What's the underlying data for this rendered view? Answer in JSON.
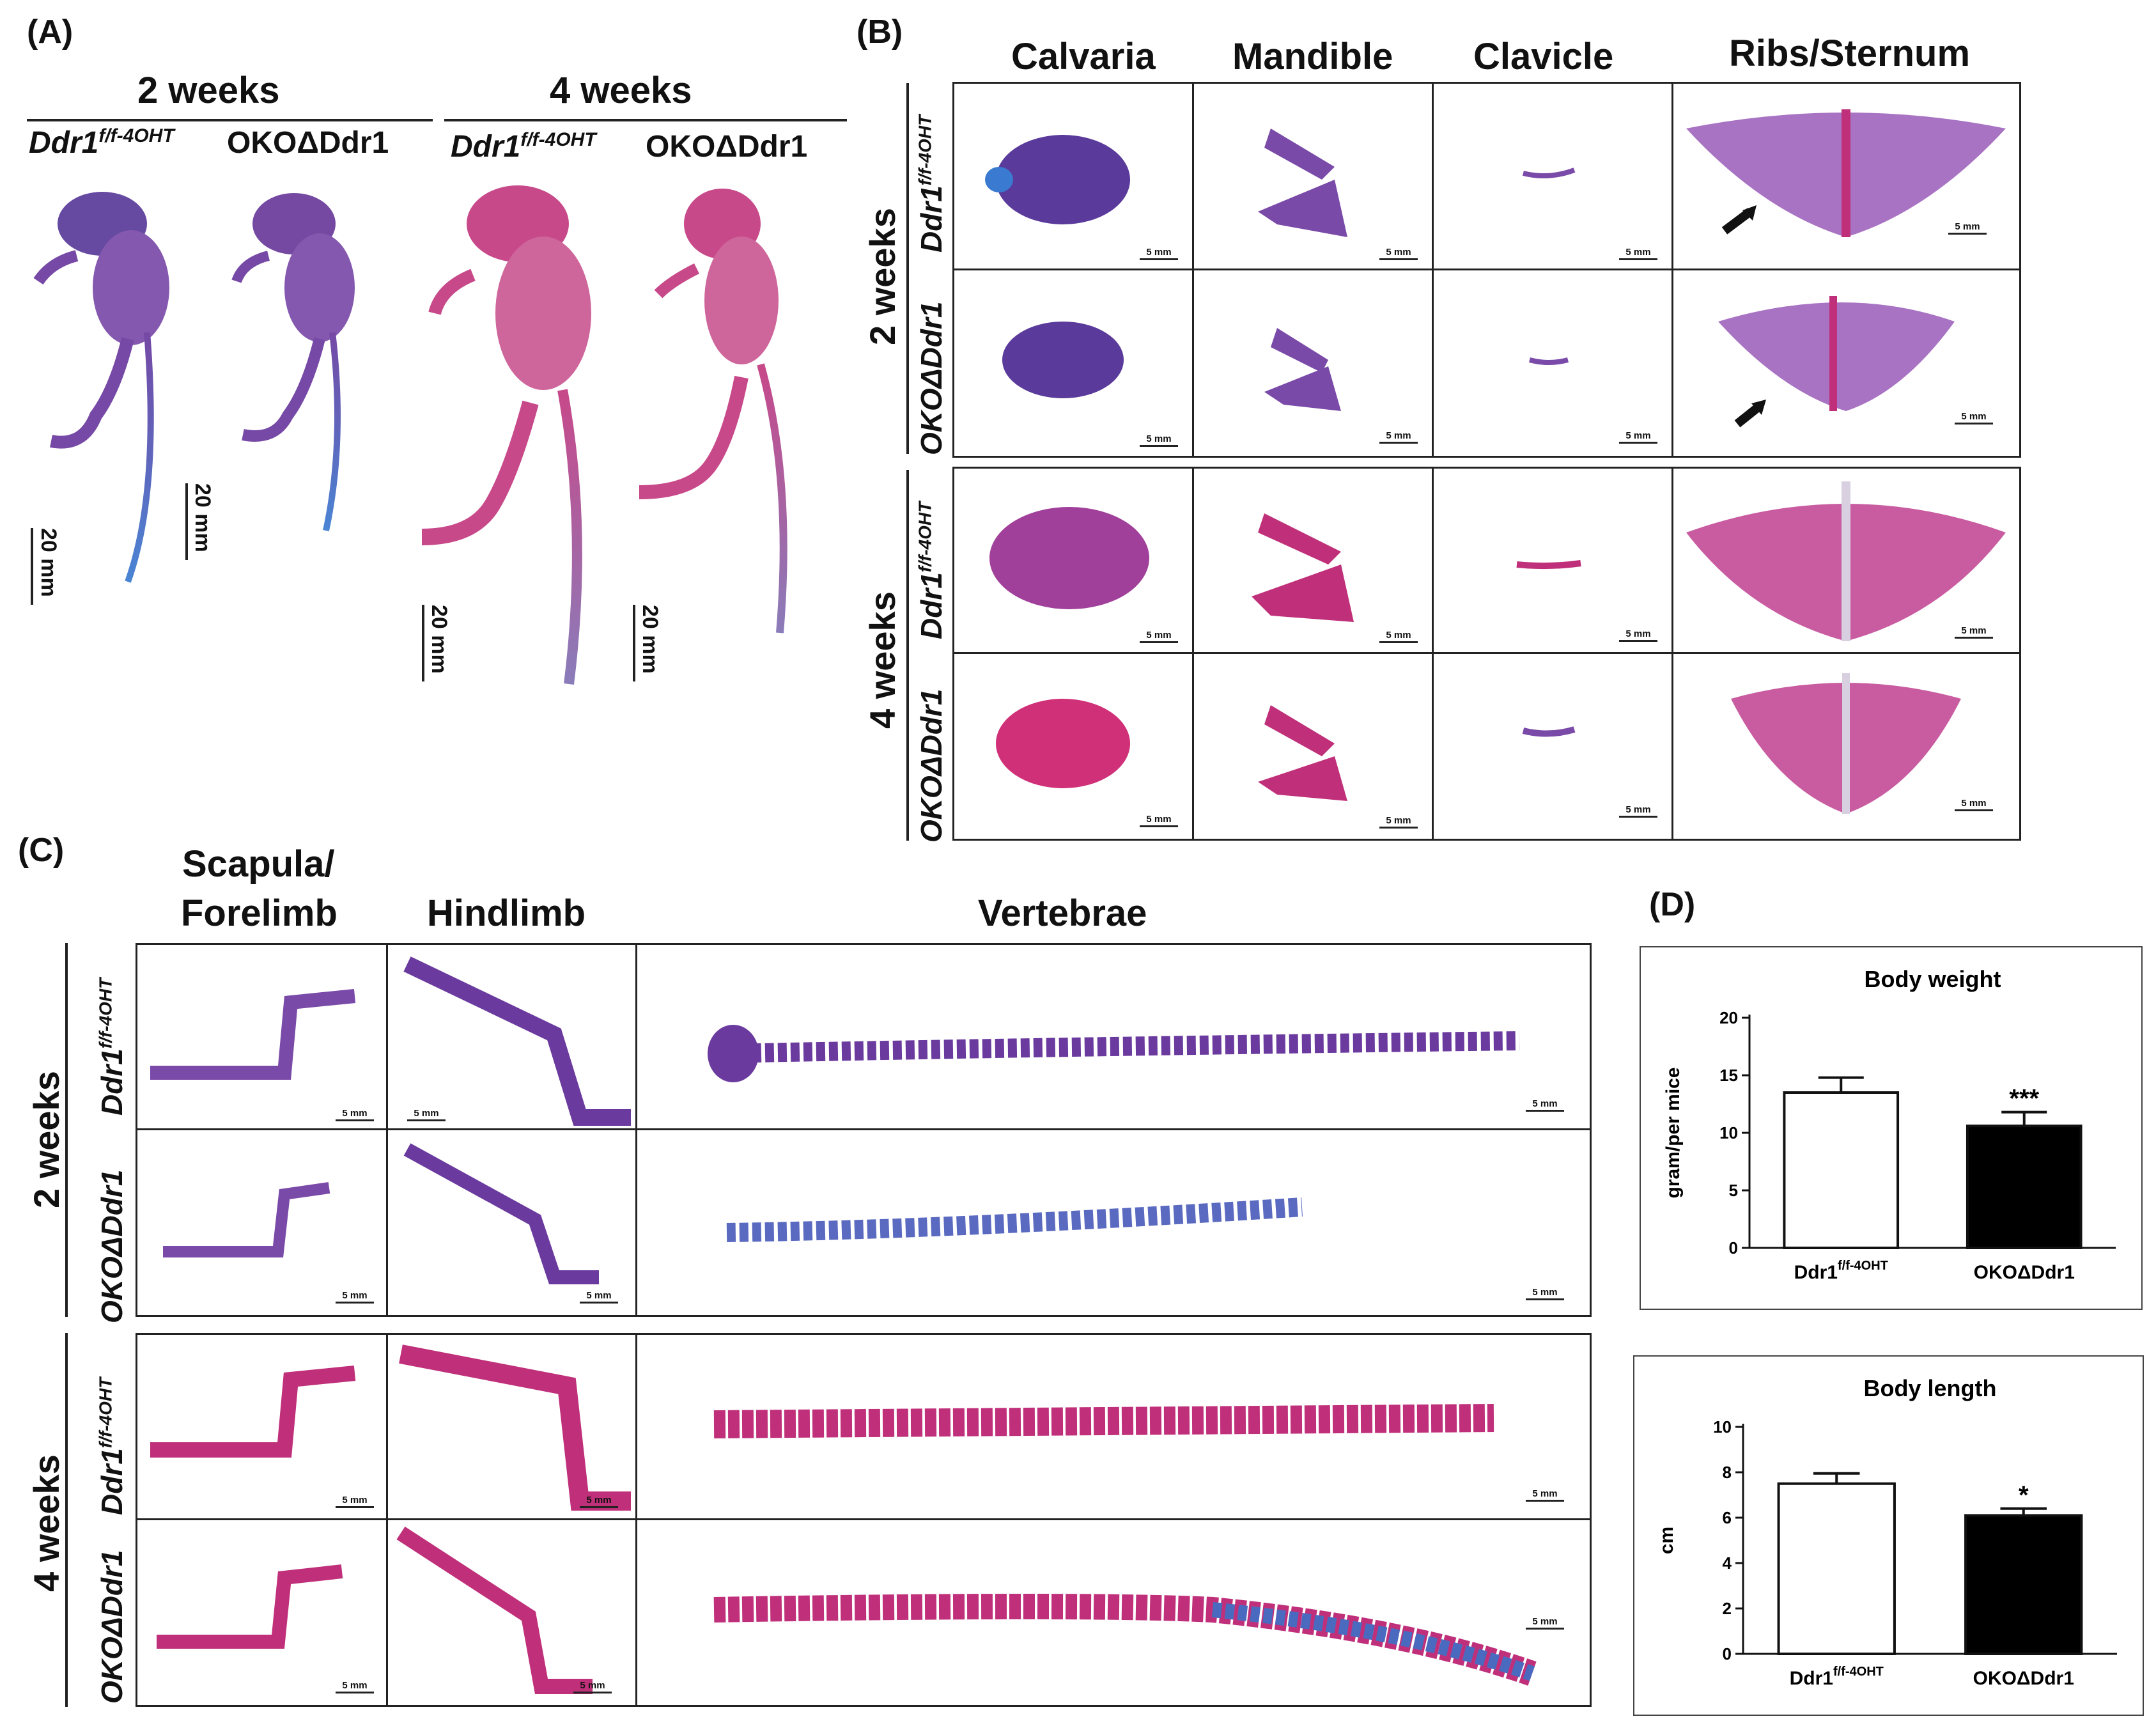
{
  "panels": {
    "A": {
      "label": "(A)",
      "groups": [
        "2 weeks",
        "4 weeks"
      ],
      "genotype_control": "Ddr1",
      "genotype_control_sup": "f/f-4OHT",
      "genotype_ko": "OKOΔDdr1",
      "scale": "20 mm"
    },
    "B": {
      "label": "(B)",
      "columns": [
        "Calvaria",
        "Mandible",
        "Clavicle",
        "Ribs/Sternum"
      ],
      "weeks": [
        "2 weeks",
        "4 weeks"
      ],
      "scale": "5 mm"
    },
    "C": {
      "label": "(C)",
      "columns": [
        "Scapula/",
        "Forelimb",
        "Hindlimb",
        "Vertebrae"
      ],
      "weeks": [
        "2 weeks",
        "4 weeks"
      ],
      "scale": "5 mm"
    },
    "D": {
      "label": "(D)"
    }
  },
  "chart_data": [
    {
      "type": "bar",
      "title": "Body  weight",
      "categories": [
        "Ddr1",
        "OKOΔDdr1"
      ],
      "category_sup": [
        "f/f-4OHT",
        ""
      ],
      "values": [
        13.5,
        10.6
      ],
      "errors": [
        1.3,
        1.2
      ],
      "colors": [
        "#ffffff",
        "#000000"
      ],
      "significance": [
        "",
        "***"
      ],
      "ylabel": "gram/per mice",
      "xlabel": "",
      "ylim": [
        0,
        20
      ],
      "yticks": [
        0,
        5,
        10,
        15,
        20
      ]
    },
    {
      "type": "bar",
      "title": "Body  length",
      "categories": [
        "Ddr1",
        "OKOΔDdr1"
      ],
      "category_sup": [
        "f/f-4OHT",
        ""
      ],
      "values": [
        7.5,
        6.1
      ],
      "errors": [
        0.45,
        0.3
      ],
      "colors": [
        "#ffffff",
        "#000000"
      ],
      "significance": [
        "",
        "*"
      ],
      "ylabel": "cm",
      "xlabel": "",
      "ylim": [
        0,
        10
      ],
      "yticks": [
        0,
        2,
        4,
        6,
        8,
        10
      ]
    }
  ],
  "colors": {
    "alizarin": "#c0307a",
    "alcian": "#3a7ad0",
    "purple": "#6a3a9e",
    "ink": "#111111"
  }
}
